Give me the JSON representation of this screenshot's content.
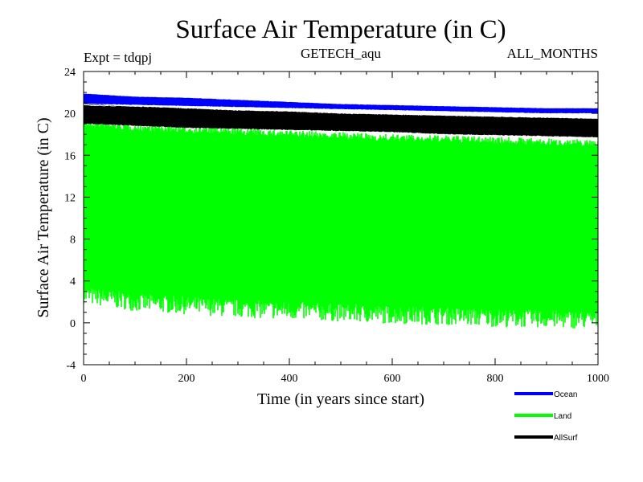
{
  "chart_data": {
    "type": "line",
    "title": "Surface Air Temperature (in C)",
    "subtitle_left": "Expt = tdqpj",
    "subtitle_center": "GETECH_aqu",
    "subtitle_right": "ALL_MONTHS",
    "xlabel": "Time (in years since start)",
    "ylabel": "Surface Air Temperature (in C)",
    "xlim": [
      0,
      1000
    ],
    "ylim": [
      -4,
      24
    ],
    "xticks": [
      0,
      200,
      400,
      600,
      800,
      1000
    ],
    "yticks": [
      -4,
      0,
      4,
      8,
      12,
      16,
      20,
      24
    ],
    "grid": false,
    "legend_placement": "bottom-right",
    "series": [
      {
        "name": "Ocean",
        "color": "#0000ff",
        "x": [
          0,
          100,
          200,
          300,
          400,
          500,
          600,
          700,
          800,
          900,
          1000
        ],
        "y_min": [
          20.9,
          20.8,
          20.7,
          20.6,
          20.5,
          20.4,
          20.3,
          20.2,
          20.1,
          20.0,
          20.0
        ],
        "y_max": [
          21.9,
          21.6,
          21.5,
          21.3,
          21.1,
          20.9,
          20.8,
          20.7,
          20.6,
          20.5,
          20.5
        ]
      },
      {
        "name": "Land",
        "color": "#00ff00",
        "x": [
          0,
          100,
          200,
          300,
          400,
          500,
          600,
          700,
          800,
          900,
          1000
        ],
        "y_min": [
          1.8,
          1.1,
          0.8,
          0.5,
          0.3,
          0.1,
          -0.1,
          -0.2,
          -0.4,
          -0.5,
          -0.6
        ],
        "y_max": [
          19.3,
          19.0,
          18.8,
          18.6,
          18.4,
          18.2,
          18.0,
          17.9,
          17.8,
          17.6,
          17.5
        ]
      },
      {
        "name": "AllSurf",
        "color": "#000000",
        "x": [
          0,
          100,
          200,
          300,
          400,
          500,
          600,
          700,
          800,
          900,
          1000
        ],
        "y_min": [
          19.0,
          18.8,
          18.6,
          18.5,
          18.4,
          18.3,
          18.2,
          18.0,
          17.9,
          17.8,
          17.7
        ],
        "y_max": [
          20.9,
          20.7,
          20.5,
          20.3,
          20.2,
          20.0,
          19.9,
          19.8,
          19.7,
          19.6,
          19.5
        ]
      }
    ]
  }
}
